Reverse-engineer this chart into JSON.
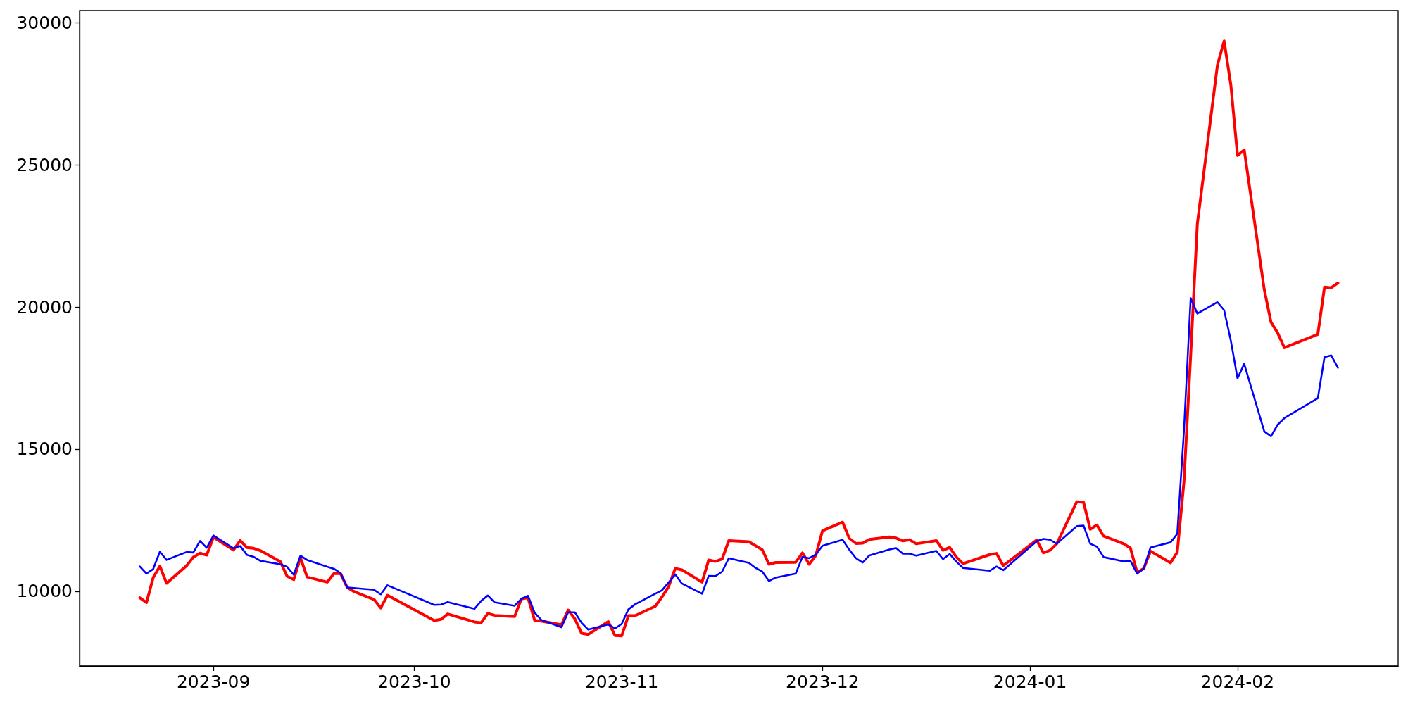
{
  "chart_data": {
    "type": "line",
    "xlim": [
      "2023-08-12",
      "2024-02-25"
    ],
    "xticks": [
      "2023-09",
      "2023-10",
      "2023-11",
      "2023-12",
      "2024-01",
      "2024-02"
    ],
    "ylim": [
      7370,
      30430
    ],
    "yticks": [
      10000,
      15000,
      20000,
      25000,
      30000
    ],
    "x": [
      "2023-08-21",
      "2023-08-22",
      "2023-08-23",
      "2023-08-24",
      "2023-08-25",
      "2023-08-28",
      "2023-08-29",
      "2023-08-30",
      "2023-08-31",
      "2023-09-01",
      "2023-09-04",
      "2023-09-05",
      "2023-09-06",
      "2023-09-07",
      "2023-09-08",
      "2023-09-11",
      "2023-09-12",
      "2023-09-13",
      "2023-09-14",
      "2023-09-15",
      "2023-09-18",
      "2023-09-19",
      "2023-09-20",
      "2023-09-21",
      "2023-09-22",
      "2023-09-25",
      "2023-09-26",
      "2023-09-27",
      "2023-10-04",
      "2023-10-05",
      "2023-10-06",
      "2023-10-10",
      "2023-10-11",
      "2023-10-12",
      "2023-10-13",
      "2023-10-16",
      "2023-10-17",
      "2023-10-18",
      "2023-10-19",
      "2023-10-20",
      "2023-10-23",
      "2023-10-24",
      "2023-10-25",
      "2023-10-26",
      "2023-10-27",
      "2023-10-30",
      "2023-10-31",
      "2023-11-01",
      "2023-11-02",
      "2023-11-03",
      "2023-11-06",
      "2023-11-07",
      "2023-11-08",
      "2023-11-09",
      "2023-11-10",
      "2023-11-13",
      "2023-11-14",
      "2023-11-15",
      "2023-11-16",
      "2023-11-17",
      "2023-11-20",
      "2023-11-21",
      "2023-11-22",
      "2023-11-23",
      "2023-11-24",
      "2023-11-27",
      "2023-11-28",
      "2023-11-29",
      "2023-11-30",
      "2023-12-01",
      "2023-12-04",
      "2023-12-05",
      "2023-12-06",
      "2023-12-07",
      "2023-12-08",
      "2023-12-11",
      "2023-12-12",
      "2023-12-13",
      "2023-12-14",
      "2023-12-15",
      "2023-12-18",
      "2023-12-19",
      "2023-12-20",
      "2023-12-21",
      "2023-12-22",
      "2023-12-26",
      "2023-12-27",
      "2023-12-28",
      "2024-01-02",
      "2024-01-03",
      "2024-01-04",
      "2024-01-05",
      "2024-01-08",
      "2024-01-09",
      "2024-01-10",
      "2024-01-11",
      "2024-01-12",
      "2024-01-15",
      "2024-01-16",
      "2024-01-17",
      "2024-01-18",
      "2024-01-19",
      "2024-01-22",
      "2024-01-23",
      "2024-01-24",
      "2024-01-25",
      "2024-01-26",
      "2024-01-29",
      "2024-01-30",
      "2024-01-31",
      "2024-02-01",
      "2024-02-02",
      "2024-02-05",
      "2024-02-06",
      "2024-02-07",
      "2024-02-08",
      "2024-02-13",
      "2024-02-14",
      "2024-02-15",
      "2024-02-16"
    ],
    "series": [
      {
        "color": "#ff0000",
        "values": [
          9770,
          9600,
          10480,
          10880,
          10280,
          10900,
          11200,
          11340,
          11270,
          11900,
          11450,
          11780,
          11540,
          11510,
          11430,
          11040,
          10530,
          10410,
          11180,
          10500,
          10320,
          10620,
          10620,
          10130,
          9990,
          9710,
          9410,
          9860,
          8970,
          9010,
          9200,
          8920,
          8890,
          9220,
          9150,
          9110,
          9730,
          9770,
          8970,
          8950,
          8820,
          9340,
          9030,
          8520,
          8480,
          8930,
          8440,
          8430,
          9140,
          9140,
          9470,
          9790,
          10160,
          10800,
          10750,
          10320,
          11100,
          11050,
          11130,
          11780,
          11740,
          11600,
          11460,
          10950,
          11010,
          11020,
          11350,
          10950,
          11260,
          12130,
          12430,
          11860,
          11680,
          11690,
          11820,
          11910,
          11870,
          11770,
          11810,
          11670,
          11780,
          11440,
          11540,
          11200,
          10970,
          11290,
          11330,
          10900,
          11800,
          11350,
          11440,
          11670,
          13150,
          13130,
          12180,
          12330,
          11940,
          11670,
          11520,
          10660,
          10800,
          11410,
          11000,
          11370,
          13850,
          18300,
          22930,
          28510,
          29360,
          27820,
          25330,
          25530,
          20610,
          19470,
          19090,
          18570,
          19040,
          20700,
          20680,
          20850
        ]
      },
      {
        "color": "#0000ff",
        "values": [
          10870,
          10620,
          10780,
          11390,
          11100,
          11380,
          11360,
          11770,
          11530,
          11960,
          11510,
          11590,
          11280,
          11210,
          11070,
          10950,
          10860,
          10580,
          11250,
          11100,
          10860,
          10790,
          10640,
          10130,
          10110,
          10050,
          9890,
          10210,
          9520,
          9530,
          9620,
          9380,
          9660,
          9850,
          9610,
          9490,
          9730,
          9840,
          9240,
          8990,
          8730,
          9260,
          9260,
          8890,
          8650,
          8830,
          8690,
          8850,
          9360,
          9540,
          9910,
          10030,
          10310,
          10590,
          10270,
          9910,
          10540,
          10530,
          10690,
          11160,
          11000,
          10820,
          10690,
          10360,
          10480,
          10620,
          11210,
          11160,
          11290,
          11600,
          11810,
          11460,
          11160,
          11010,
          11260,
          11470,
          11520,
          11320,
          11320,
          11250,
          11420,
          11130,
          11310,
          11040,
          10820,
          10720,
          10870,
          10740,
          11760,
          11840,
          11810,
          11670,
          12290,
          12310,
          11670,
          11570,
          11200,
          11050,
          11070,
          10620,
          10800,
          11540,
          11720,
          12020,
          15650,
          20310,
          19770,
          20170,
          19890,
          18820,
          17490,
          18000,
          15620,
          15450,
          15860,
          16090,
          16790,
          18240,
          18300,
          17860
        ]
      }
    ]
  }
}
